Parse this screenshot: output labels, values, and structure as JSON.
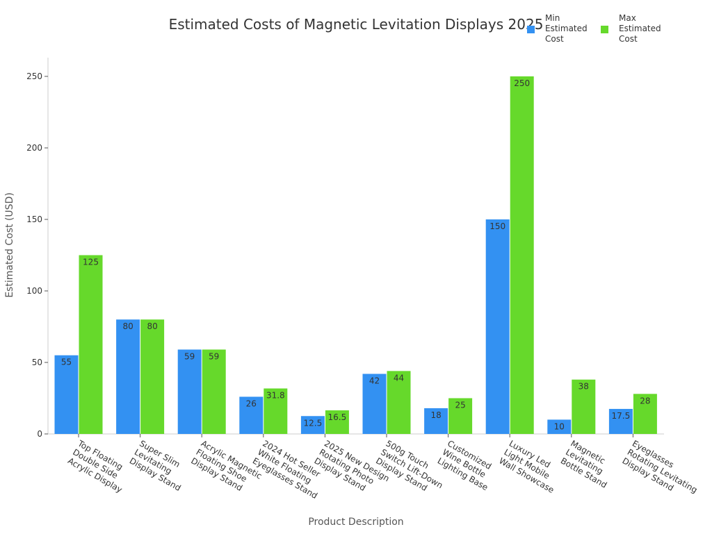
{
  "chart_data": {
    "type": "bar",
    "title": "Estimated Costs of Magnetic Levitation Displays 2025",
    "xlabel": "Product Description",
    "ylabel": "Estimated Cost (USD)",
    "ylim": [
      0,
      262
    ],
    "yticks": [
      0,
      50,
      100,
      150,
      200,
      250
    ],
    "grid": false,
    "legend_placement": "top-right",
    "categories": [
      [
        "Top Floating",
        "Double Side",
        "Acrylic Display"
      ],
      [
        "Super Slim",
        "Levitating",
        "Display Stand"
      ],
      [
        "Acrylic Magnetic",
        "Floating Shoe",
        "Display Stand"
      ],
      [
        "2024 Hot Seller",
        "White Floating",
        "Eyeglasses Stand"
      ],
      [
        "2025 New Design",
        "Rotating Photo",
        "Display Stand"
      ],
      [
        "500g Touch",
        "Switch Lift-Down",
        "Display Stand"
      ],
      [
        "Customized",
        "Wine Bottle",
        "Lighting Base"
      ],
      [
        "Luxury Led",
        "Light Mobile",
        "Wall Showcase"
      ],
      [
        "Magnetic",
        "Levitating",
        "Bottle Stand"
      ],
      [
        "Eyeglasses",
        "Rotating Levitating",
        "Display Stand"
      ]
    ],
    "series": [
      {
        "name": [
          "Min",
          "Estimated",
          "Cost"
        ],
        "color": "#3391f2",
        "values": [
          55,
          80,
          59,
          26,
          12.5,
          42,
          18,
          150,
          10,
          17.5
        ]
      },
      {
        "name": [
          "Max",
          "Estimated",
          "Cost"
        ],
        "color": "#66d92b",
        "values": [
          125,
          80,
          59,
          31.8,
          16.5,
          44,
          25,
          250,
          38,
          28
        ]
      }
    ]
  }
}
